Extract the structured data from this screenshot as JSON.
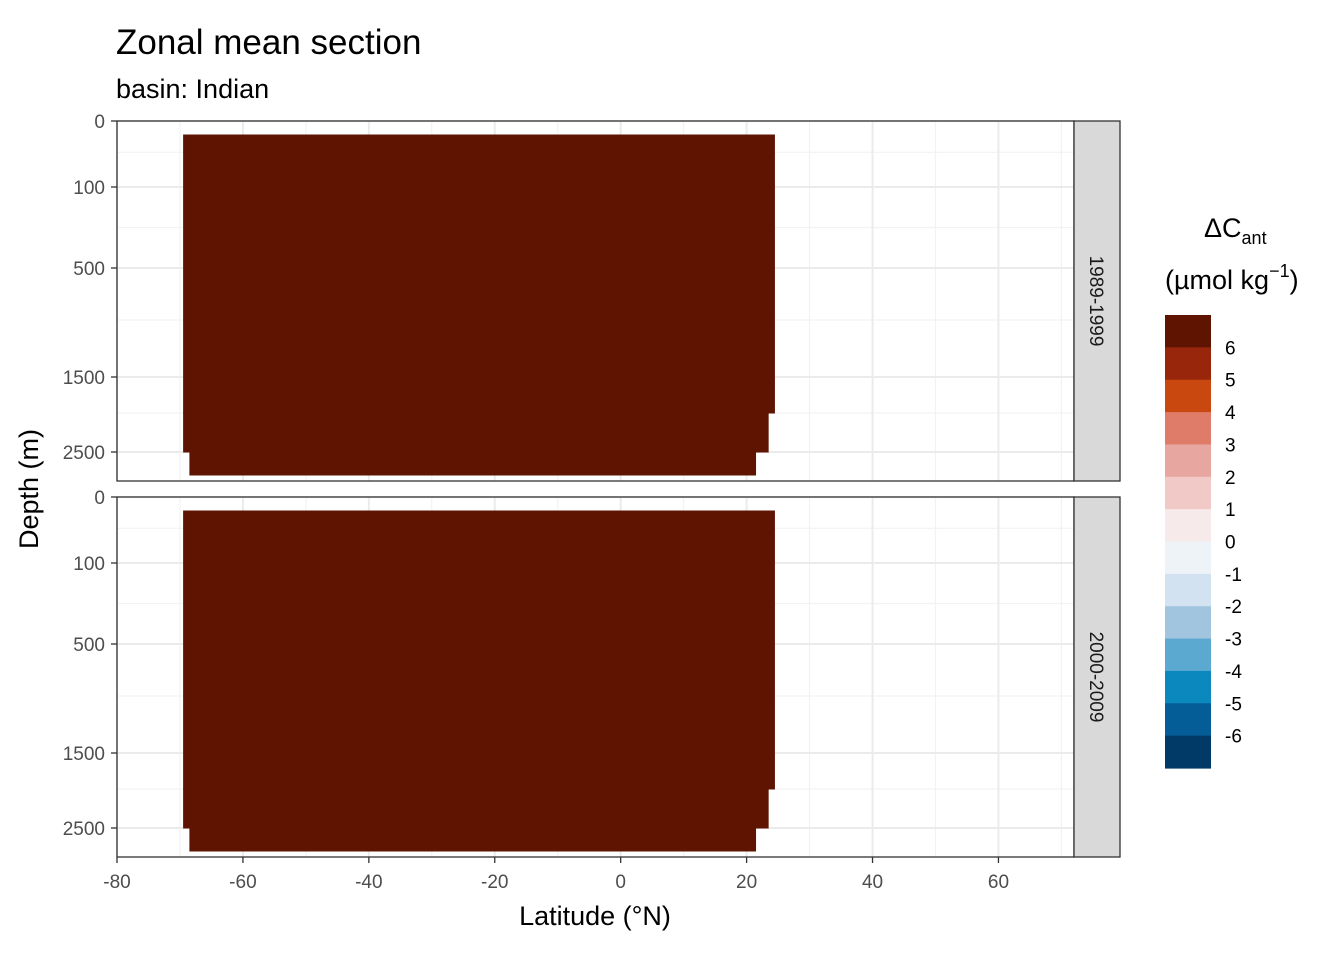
{
  "chart_data": {
    "type": "heatmap",
    "title": "Zonal mean section",
    "subtitle": "basin: Indian",
    "xlabel": "Latitude (°N)",
    "ylabel": "Depth (m)",
    "xlim": [
      -80,
      72
    ],
    "x_ticks": [
      -80,
      -60,
      -40,
      -20,
      0,
      20,
      40,
      60
    ],
    "x_tick_labels": [
      "-80",
      "-60",
      "-40",
      "-20",
      "0",
      "20",
      "40",
      "60"
    ],
    "y_ticks": [
      0,
      100,
      500,
      1500,
      2500
    ],
    "y_tick_labels": [
      "0",
      "100",
      "500",
      "1500",
      "2500"
    ],
    "y_reversed": true,
    "grid": true,
    "legend_position": "right",
    "legend": {
      "title_main": "ΔC",
      "title_sub": "ant",
      "title_units_pre": "(µmol kg",
      "title_units_sup": "−1",
      "title_units_post": ")",
      "breaks": [
        "6",
        "5",
        "4",
        "3",
        "2",
        "1",
        "0",
        "-1",
        "-2",
        "-3",
        "-4",
        "-5",
        "-6"
      ],
      "colors": [
        "#5f1402",
        "#98260a",
        "#c84810",
        "#df7b69",
        "#e7a69f",
        "#f1cac7",
        "#f7eaea",
        "#eef3f7",
        "#d2e2f0",
        "#a2c5df",
        "#5ba8d0",
        "#0b88be",
        "#045d97",
        "#023a67"
      ]
    },
    "panels": [
      {
        "label": "1989-1999",
        "fill_color": "#5f1402",
        "value": ">6",
        "profile": [
          {
            "lat_min": -69.5,
            "lat_max": 24.5,
            "depth_top": 25,
            "depth_bottom": 2000
          },
          {
            "lat_min": -69.5,
            "lat_max": 23.5,
            "depth_top": 2000,
            "depth_bottom": 2500
          },
          {
            "lat_min": -68.5,
            "lat_max": 21.5,
            "depth_top": 2500,
            "depth_bottom": 3000
          }
        ]
      },
      {
        "label": "2000-2009",
        "fill_color": "#5f1402",
        "value": ">6",
        "profile": [
          {
            "lat_min": -69.5,
            "lat_max": 24.5,
            "depth_top": 25,
            "depth_bottom": 2000
          },
          {
            "lat_min": -69.5,
            "lat_max": 23.5,
            "depth_top": 2000,
            "depth_bottom": 2500
          },
          {
            "lat_min": -68.5,
            "lat_max": 21.5,
            "depth_top": 2500,
            "depth_bottom": 3000
          }
        ]
      }
    ]
  }
}
